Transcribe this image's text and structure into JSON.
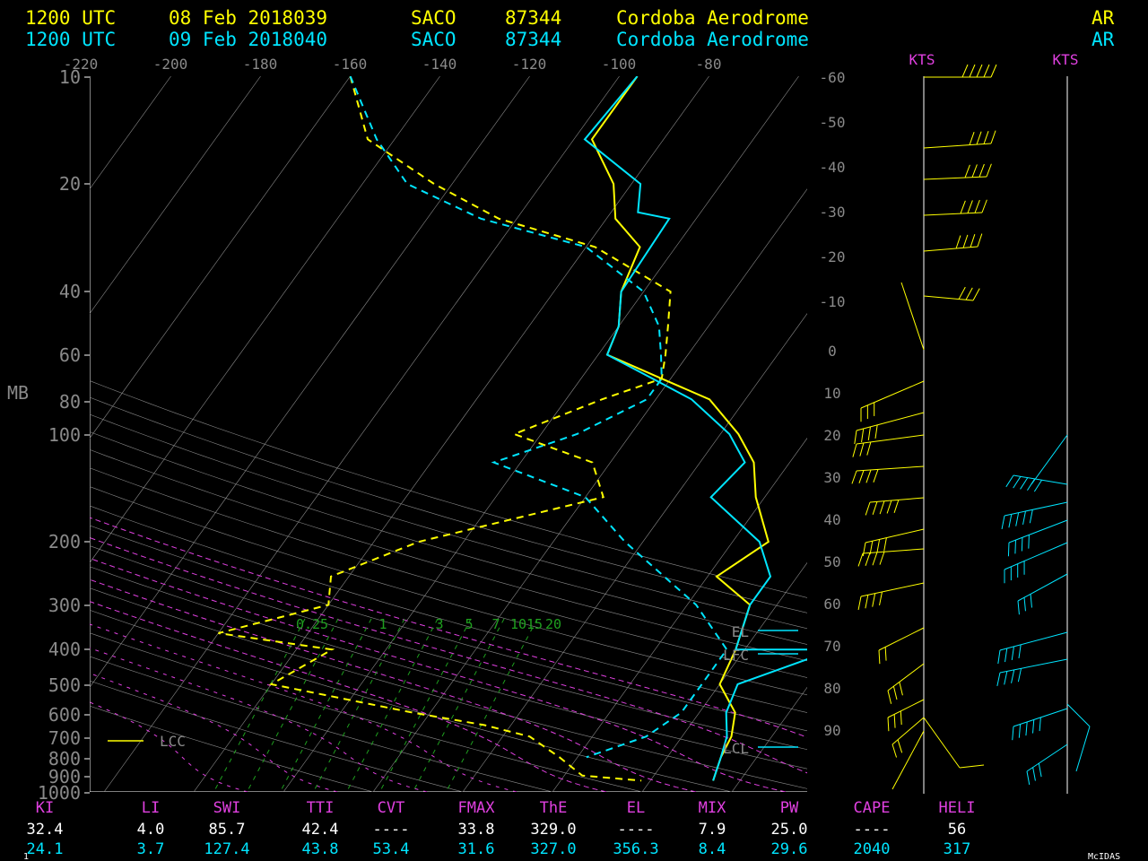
{
  "colors": {
    "yellow": "#ffff00",
    "cyan": "#00e5ff",
    "magenta": "#e040e0",
    "green": "#1fa01f",
    "gray": "#8a8a8a",
    "white": "#ffffff",
    "black": "#000000"
  },
  "header": [
    {
      "time": "1200 UTC",
      "date": "08 Feb 2018039",
      "station_id": "SACO",
      "station_num": "87344",
      "station_name": "Cordoba Aerodrome",
      "country": "AR"
    },
    {
      "time": "1200 UTC",
      "date": "09 Feb 2018040",
      "station_id": "SACO",
      "station_num": "87344",
      "station_name": "Cordoba Aerodrome",
      "country": "AR"
    }
  ],
  "axis": {
    "pressure_label": "MB",
    "pressure_ticks": [
      "10",
      "20",
      "40",
      "60",
      "80",
      "100",
      "200",
      "300",
      "400",
      "500",
      "600",
      "700",
      "800",
      "900",
      "1000"
    ],
    "theta_ticks": [
      "-220",
      "-200",
      "-180",
      "-160",
      "-140",
      "-120",
      "-100",
      "-80"
    ],
    "temp_ticks": [
      "-60",
      "-50",
      "-40",
      "-30",
      "-20",
      "-10",
      "0",
      "10",
      "20",
      "30",
      "40",
      "50",
      "60",
      "70",
      "80",
      "90"
    ],
    "mixing_ratio_labels": [
      "0.25",
      "1",
      "3",
      "5",
      "7",
      "10",
      "15",
      "20"
    ]
  },
  "wind_units_label": "KTS",
  "levels_legend": {
    "el": "EL",
    "lfc": "LFC",
    "lcl": "LCL",
    "lcc": "LCC"
  },
  "stats_headers": [
    "KI",
    "LI",
    "SWI",
    "TTI",
    "CVT",
    "FMAX",
    "ThE",
    "EL",
    "MIX",
    "PW",
    "CAPE",
    "HELI"
  ],
  "stats_rows": [
    [
      "32.4",
      "4.0",
      "85.7",
      "42.4",
      "----",
      "33.8",
      "329.0",
      "----",
      "7.9",
      "25.0",
      "----",
      "56"
    ],
    [
      "24.1",
      "3.7",
      "127.4",
      "43.8",
      "53.4",
      "31.6",
      "327.0",
      "356.3",
      "8.4",
      "29.6",
      "2040",
      "317"
    ]
  ],
  "footer": {
    "page": "1",
    "credit": "McIDAS"
  },
  "chart_data": {
    "type": "line",
    "title": "",
    "xlabel": "",
    "ylabel": "MB",
    "x_unit": "C",
    "y_scale": "log-pressure",
    "ylim": [
      1000,
      10
    ],
    "series": [
      {
        "color": "yellow",
        "variable": "temperature",
        "x": [
          -38,
          -38,
          -32,
          -29,
          -24,
          -22.5,
          -20,
          -19,
          -11,
          -4,
          2,
          6,
          9,
          14,
          11,
          17,
          19,
          20,
          24,
          25.5,
          26,
          27
        ],
        "y": [
          10,
          15,
          20,
          25,
          30,
          40,
          50,
          60,
          70,
          80,
          100,
          120,
          150,
          200,
          250,
          300,
          400,
          500,
          600,
          700,
          800,
          930
        ]
      },
      {
        "color": "yellow",
        "variable": "dewpoint",
        "x": [
          -70,
          -63,
          -52,
          -42,
          -29,
          -17,
          -14.5,
          -12.5,
          -11,
          -16,
          -23,
          -12,
          -8,
          -25,
          -32,
          -30,
          -40,
          -26,
          -30,
          -12,
          -3,
          3,
          8,
          12,
          19
        ],
        "y": [
          10,
          15,
          20,
          25,
          30,
          40,
          50,
          60,
          70,
          80,
          100,
          120,
          150,
          200,
          250,
          300,
          360,
          400,
          500,
          600,
          650,
          700,
          800,
          900,
          930
        ]
      },
      {
        "color": "cyan",
        "variable": "temperature",
        "x": [
          -38,
          -38.8,
          -29,
          -27,
          -23,
          -22.5,
          -20,
          -19,
          -12,
          -6,
          1,
          5,
          4,
          13,
          17,
          17,
          19,
          30,
          22,
          23,
          25,
          26,
          27
        ],
        "y": [
          10,
          15,
          20,
          24,
          25,
          40,
          50,
          60,
          70,
          80,
          100,
          120,
          150,
          200,
          250,
          300,
          400,
          400,
          500,
          600,
          700,
          800,
          930
        ]
      },
      {
        "color": "cyan",
        "variable": "dewpoint",
        "x": [
          -70,
          -62,
          -55,
          -44,
          -30,
          -20,
          -15.5,
          -13,
          -11,
          -11,
          -16,
          -23,
          -10,
          -2,
          11,
          18,
          18,
          18,
          16,
          11
        ],
        "y": [
          10,
          15,
          20,
          25,
          30,
          40,
          50,
          60,
          70,
          80,
          100,
          120,
          150,
          200,
          300,
          400,
          500,
          600,
          700,
          800
        ]
      }
    ]
  }
}
